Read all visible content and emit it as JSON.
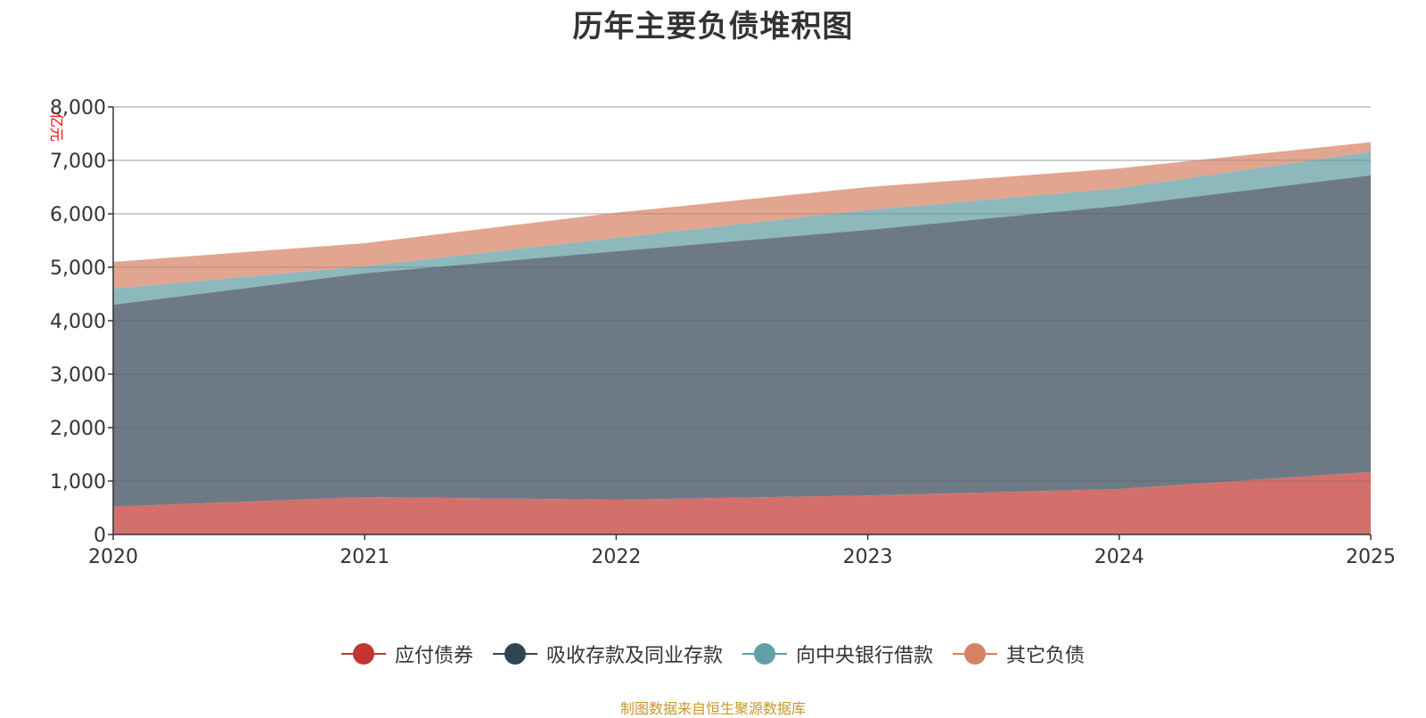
{
  "chart_data": {
    "type": "area",
    "stacked": true,
    "title": "历年主要负债堆积图",
    "ylabel": "亿元",
    "xlabel": "",
    "x": [
      "2020",
      "2021",
      "2022",
      "2023",
      "2024",
      "2025"
    ],
    "ylim": [
      0,
      8000
    ],
    "yticks": [
      0,
      1000,
      2000,
      3000,
      4000,
      5000,
      6000,
      7000,
      8000
    ],
    "ytick_labels": [
      "0",
      "1,000",
      "2,000",
      "3,000",
      "4,000",
      "5,000",
      "6,000",
      "7,000",
      "8,000"
    ],
    "grid": true,
    "legend_position": "bottom-center",
    "series": [
      {
        "name": "应付债券",
        "color": "#c23531",
        "fill": "#d4706b",
        "values": [
          520,
          700,
          650,
          730,
          850,
          1170
        ]
      },
      {
        "name": "吸收存款及同业存款",
        "color": "#2f4554",
        "fill": "#6d7a86",
        "values": [
          3780,
          4190,
          4650,
          4970,
          5300,
          5550
        ]
      },
      {
        "name": "向中央银行借款",
        "color": "#61a0a8",
        "fill": "#8db8bc",
        "values": [
          300,
          130,
          250,
          370,
          330,
          440
        ]
      },
      {
        "name": "其它负债",
        "color": "#d48265",
        "fill": "#e1a590",
        "values": [
          500,
          430,
          470,
          430,
          370,
          180
        ]
      }
    ]
  },
  "source_note": "制图数据来自恒生聚源数据库"
}
